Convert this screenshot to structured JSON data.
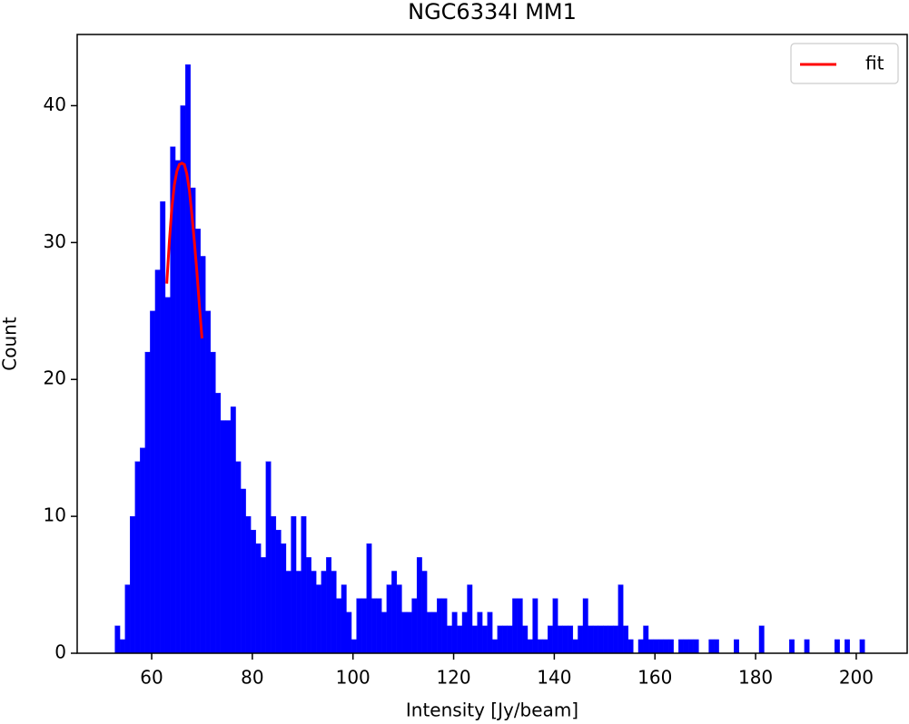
{
  "chart_data": {
    "type": "histogram",
    "title": "NGC6334I MM1",
    "xlabel": "Intensity [Jy/beam]",
    "ylabel": "Count",
    "color": "#0000ff",
    "bins": [
      52.7,
      53.7,
      54.7,
      55.7,
      56.7,
      57.7,
      58.7,
      59.7,
      60.7,
      61.7,
      62.7,
      63.7,
      64.7,
      65.7,
      66.7,
      67.7,
      68.7,
      69.7,
      70.7,
      71.7,
      72.7,
      73.7,
      74.7,
      75.7,
      76.7,
      77.7,
      78.7,
      79.7,
      80.7,
      81.7,
      82.7,
      83.7,
      84.7,
      85.7,
      86.7,
      87.7,
      88.7,
      89.7,
      90.7,
      91.7,
      92.7,
      93.7,
      94.7,
      95.7,
      96.7,
      97.7,
      98.7,
      99.7,
      100.7,
      101.7,
      102.7,
      103.7,
      104.7,
      105.7,
      106.7,
      107.7,
      108.7,
      109.7,
      110.7,
      111.7,
      112.7,
      113.7,
      114.7,
      115.7,
      116.7,
      117.7,
      118.7,
      119.7,
      120.7,
      121.7,
      122.7,
      123.7,
      124.7,
      125.7,
      126.7,
      127.7,
      128.7,
      129.7,
      130.7,
      131.7,
      132.7,
      133.7,
      134.7,
      135.7,
      136.7,
      137.7,
      138.7,
      139.7,
      140.7,
      141.7,
      142.7,
      143.7,
      144.7,
      145.7,
      146.7,
      147.7,
      148.7,
      149.7,
      150.7,
      151.7,
      152.7,
      153.7,
      154.7,
      155.7,
      156.7,
      157.7,
      158.7,
      159.7,
      160.7,
      161.7,
      162.7,
      163.7,
      164.7,
      165.7,
      166.7,
      167.7,
      168.7,
      169.7,
      170.7,
      171.7,
      172.7,
      173.7,
      174.7,
      175.7,
      176.7,
      177.7,
      178.7,
      179.7,
      180.7,
      181.7,
      182.7,
      183.7,
      184.7,
      185.7,
      186.7,
      187.7,
      188.7,
      189.7,
      190.7,
      191.7,
      192.7,
      193.7,
      194.7,
      195.7,
      196.7,
      197.7,
      198.7,
      199.7,
      200.7,
      201.7
    ],
    "counts": [
      2,
      1,
      5,
      10,
      14,
      15,
      22,
      25,
      28,
      33,
      26,
      37,
      36,
      40,
      43,
      34,
      31,
      29,
      25,
      22,
      19,
      17,
      17,
      18,
      14,
      12,
      10,
      9,
      8,
      7,
      14,
      10,
      9,
      8,
      6,
      10,
      6,
      10,
      7,
      6,
      5,
      6,
      7,
      6,
      4,
      5,
      3,
      1,
      4,
      4,
      8,
      4,
      4,
      3,
      5,
      6,
      5,
      3,
      3,
      4,
      7,
      6,
      3,
      3,
      4,
      4,
      2,
      3,
      2,
      3,
      5,
      2,
      3,
      2,
      3,
      1,
      2,
      2,
      2,
      4,
      4,
      2,
      1,
      4,
      1,
      1,
      2,
      4,
      2,
      2,
      2,
      1,
      2,
      4,
      2,
      2,
      2,
      2,
      2,
      2,
      5,
      2,
      1,
      0,
      1,
      2,
      1,
      1,
      1,
      1,
      1,
      0,
      1,
      1,
      1,
      1,
      0,
      0,
      1,
      1,
      0,
      0,
      0,
      1,
      0,
      0,
      0,
      0,
      2,
      0,
      0,
      0,
      0,
      0,
      1,
      0,
      0,
      1,
      0,
      0,
      0,
      0,
      0,
      1,
      0,
      1,
      0,
      0,
      1
    ],
    "series": [
      {
        "name": "fit",
        "color": "#ff0000",
        "x": [
          63,
          63.5,
          64,
          64.5,
          65,
          65.5,
          66,
          66.5,
          67,
          67.5,
          68,
          68.5,
          69,
          69.5,
          70
        ],
        "values": [
          27,
          30,
          32.5,
          34.2,
          35.2,
          35.7,
          35.8,
          35.7,
          35,
          33.8,
          32,
          30,
          27.8,
          25.3,
          23
        ]
      }
    ],
    "xlim": [
      45.2,
      210.3
    ],
    "ylim": [
      0,
      45.2
    ],
    "xticks": [
      60,
      80,
      100,
      120,
      140,
      160,
      180,
      200
    ],
    "yticks": [
      0,
      10,
      20,
      30,
      40
    ],
    "legend": "upper right"
  }
}
